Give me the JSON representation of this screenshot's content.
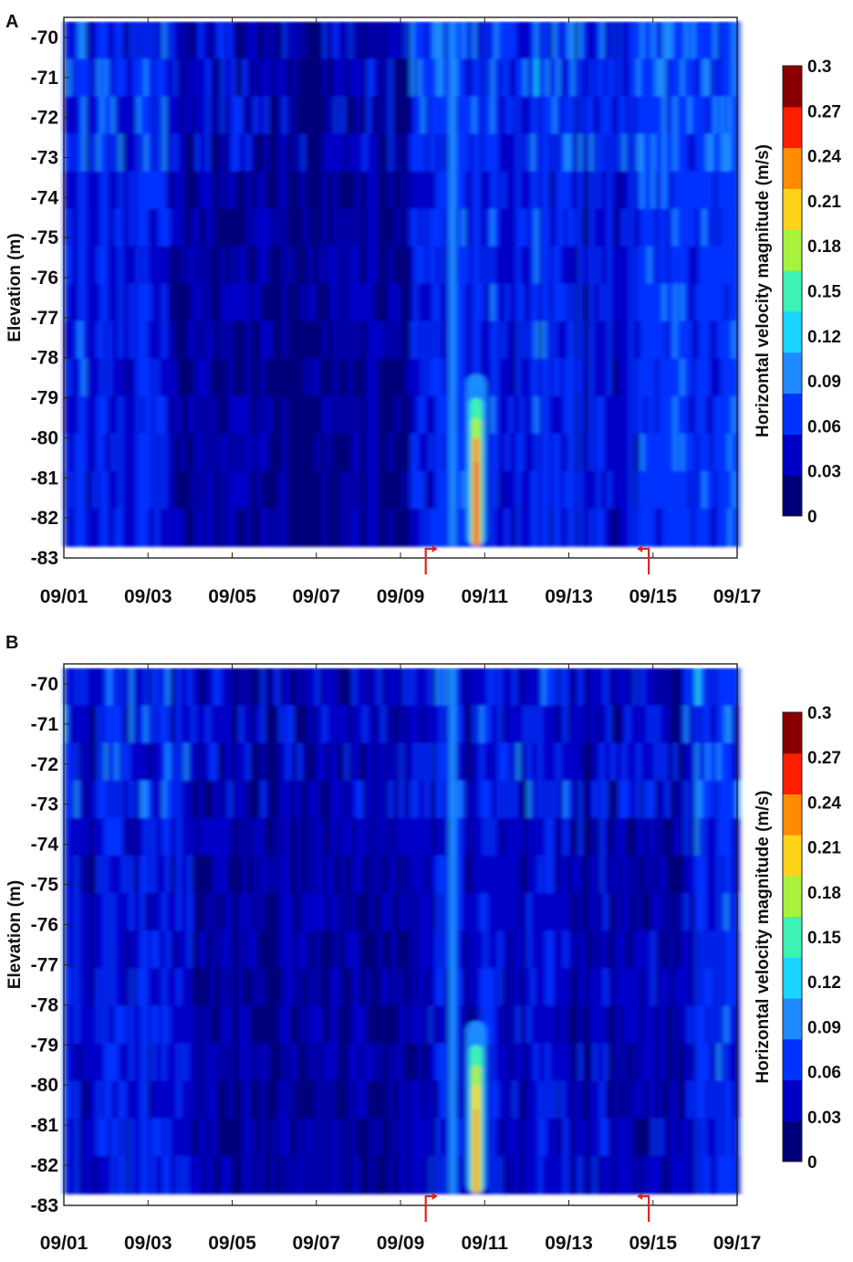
{
  "chart_data": [
    {
      "type": "heatmap",
      "panel_label": "A",
      "xlabel": "",
      "ylabel": "Elevation (m)",
      "x_ticks": [
        "09/01",
        "09/03",
        "09/05",
        "09/07",
        "09/09",
        "09/11",
        "09/13",
        "09/15",
        "09/17"
      ],
      "y_ticks": [
        "-70",
        "-71",
        "-72",
        "-73",
        "-74",
        "-75",
        "-76",
        "-77",
        "-78",
        "-79",
        "-80",
        "-81",
        "-82",
        "-83"
      ],
      "ylim": [
        -83,
        -69.5
      ],
      "colorbar": {
        "label": "Horizontal velocity magnitude (m/s)",
        "ticks": [
          "0",
          "0.03",
          "0.06",
          "0.09",
          "0.12",
          "0.15",
          "0.18",
          "0.21",
          "0.24",
          "0.27",
          "0.3"
        ],
        "range": [
          0,
          0.3
        ],
        "colors": [
          "#00007a",
          "#0000c8",
          "#0033ff",
          "#1f8bff",
          "#19d4ff",
          "#3cf2b4",
          "#a6f23c",
          "#ffd21a",
          "#ff8c00",
          "#ff1e00",
          "#8a0000"
        ]
      },
      "events": [
        {
          "date": "09/09.6",
          "direction": "right"
        },
        {
          "date": "09/14.9",
          "direction": "left"
        }
      ],
      "features": [
        {
          "date": "09/09.8",
          "elevation_range": [
            -82.5,
            -79
          ],
          "max_velocity": 0.3
        },
        {
          "date": "09/08-09/15",
          "elevation_range": [
            -82.7,
            -69.5
          ],
          "typical_velocity": 0.03
        }
      ]
    },
    {
      "type": "heatmap",
      "panel_label": "B",
      "xlabel": "",
      "ylabel": "Elevation (m)",
      "x_ticks": [
        "09/01",
        "09/03",
        "09/05",
        "09/07",
        "09/09",
        "09/11",
        "09/13",
        "09/15",
        "09/17"
      ],
      "y_ticks": [
        "-70",
        "-71",
        "-72",
        "-73",
        "-74",
        "-75",
        "-76",
        "-77",
        "-78",
        "-79",
        "-80",
        "-81",
        "-82",
        "-83"
      ],
      "ylim": [
        -83,
        -69.5
      ],
      "colorbar": {
        "label": "Horizontal velocity magnitude (m/s)",
        "ticks": [
          "0",
          "0.03",
          "0.06",
          "0.09",
          "0.12",
          "0.15",
          "0.18",
          "0.21",
          "0.24",
          "0.27",
          "0.3"
        ],
        "range": [
          0,
          0.3
        ],
        "colors": [
          "#00007a",
          "#0000c8",
          "#0033ff",
          "#1f8bff",
          "#19d4ff",
          "#3cf2b4",
          "#a6f23c",
          "#ffd21a",
          "#ff8c00",
          "#ff1e00",
          "#8a0000"
        ]
      },
      "events": [
        {
          "date": "09/09.6",
          "direction": "right"
        },
        {
          "date": "09/14.9",
          "direction": "left"
        }
      ],
      "features": [
        {
          "date": "09/09.8",
          "elevation_range": [
            -82.5,
            -79
          ],
          "max_velocity": 0.27
        },
        {
          "date": "09/01-09/17",
          "elevation_range": [
            -82.7,
            -69.5
          ],
          "typical_velocity": 0.03
        }
      ]
    }
  ]
}
